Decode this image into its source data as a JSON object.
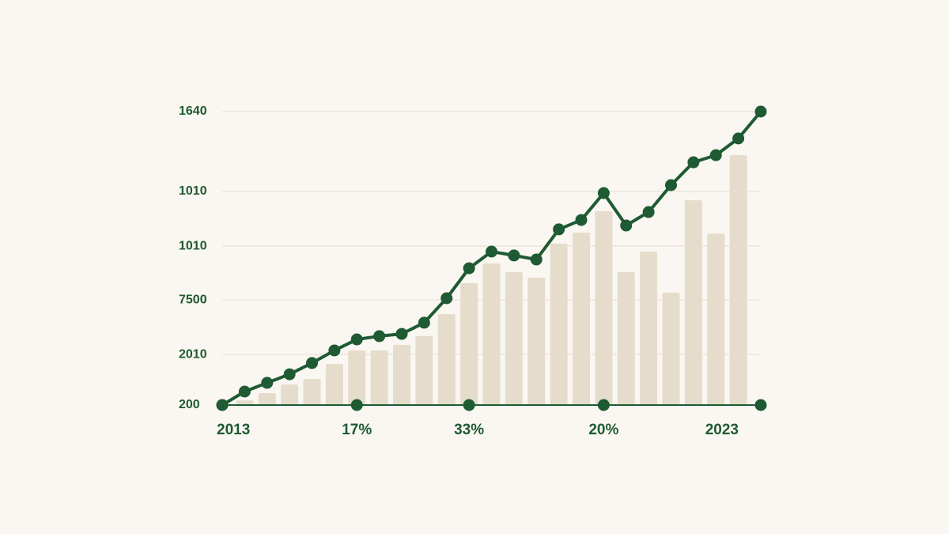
{
  "chart_data": {
    "type": "bar-line",
    "categories": [
      "2013",
      null,
      null,
      null,
      null,
      null,
      "17%",
      null,
      null,
      null,
      null,
      "33%",
      null,
      null,
      null,
      null,
      null,
      "20%",
      null,
      null,
      null,
      null,
      null,
      null,
      "2023"
    ],
    "series": [
      {
        "type": "bar",
        "color": "#e6dccb",
        "values": [
          null,
          223,
          258,
          301,
          328,
          402,
          468,
          468,
          495,
          538,
          646,
          798,
          895,
          852,
          825,
          992,
          1046,
          1151,
          852,
          953,
          751,
          1205,
          1042,
          1426,
          null
        ]
      },
      {
        "type": "line",
        "color": "#1e5a32",
        "values": [
          200,
          266,
          309,
          351,
          406,
          468,
          522,
          538,
          549,
          604,
          724,
          871,
          953,
          934,
          914,
          1062,
          1108,
          1240,
          1081,
          1147,
          1279,
          1391,
          1426,
          1508,
          1640
        ]
      }
    ],
    "ylim": [
      200,
      1640
    ],
    "yticks": [
      200,
      {
        "value": 448,
        "label": "2010"
      },
      {
        "value": 716,
        "label": "7500"
      },
      {
        "value": 980,
        "label": "1010"
      },
      {
        "value": 1248,
        "label": "1010"
      },
      1640
    ],
    "grid": true
  }
}
